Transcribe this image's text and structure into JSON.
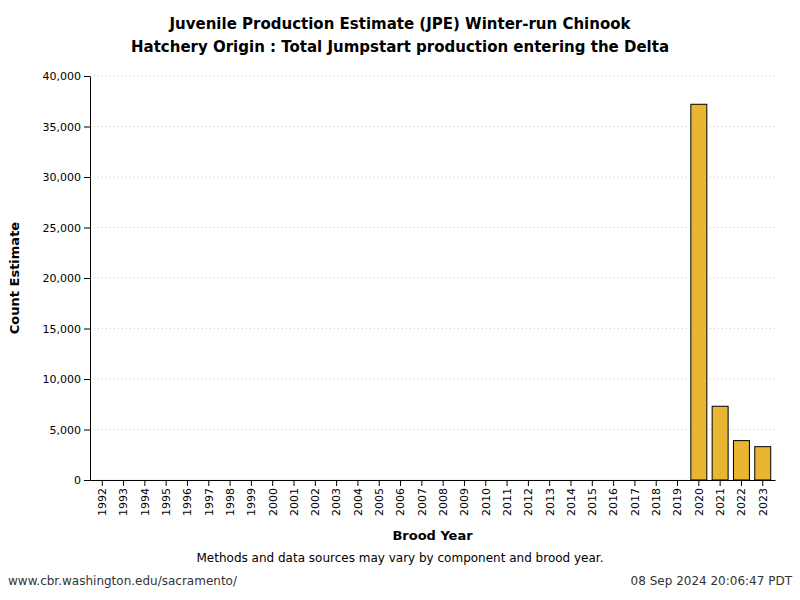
{
  "chart_data": {
    "type": "bar",
    "title": "Juvenile Production Estimate (JPE) Winter-run Chinook",
    "subtitle": "Hatchery Origin : Total Jumpstart production entering the Delta",
    "x_label": "Brood Year",
    "y_label": "Count Estimate",
    "annotations": [
      "Methods and data sources may vary by component and brood year.",
      "www.cbr.washington.edu/sacramento/",
      "08 Sep 2024 20:06:47 PDT"
    ],
    "categories": [
      "1992",
      "1993",
      "1994",
      "1995",
      "1996",
      "1997",
      "1998",
      "1999",
      "2000",
      "2001",
      "2002",
      "2003",
      "2004",
      "2005",
      "2006",
      "2007",
      "2008",
      "2009",
      "2010",
      "2011",
      "2012",
      "2013",
      "2014",
      "2015",
      "2016",
      "2017",
      "2018",
      "2019",
      "2020",
      "2021",
      "2022",
      "2023"
    ],
    "values": [
      null,
      null,
      null,
      null,
      null,
      null,
      null,
      null,
      null,
      null,
      null,
      null,
      null,
      null,
      null,
      null,
      null,
      null,
      null,
      null,
      null,
      null,
      null,
      null,
      null,
      null,
      null,
      null,
      37200,
      7300,
      3900,
      3300
    ],
    "color": "#e9b634",
    "ylim": [
      0,
      40000
    ],
    "yticks": [
      0,
      {
        "value": 5000,
        "label": "5,000"
      },
      {
        "value": 10000,
        "label": "10,000"
      },
      {
        "value": 15000,
        "label": "15,000"
      },
      {
        "value": 20000,
        "label": "20,000"
      },
      {
        "value": 25000,
        "label": "25,000"
      },
      {
        "value": 30000,
        "label": "30,000"
      },
      {
        "value": 35000,
        "label": "35,000"
      },
      {
        "value": 40000,
        "label": "40,000"
      }
    ],
    "grid": true
  }
}
